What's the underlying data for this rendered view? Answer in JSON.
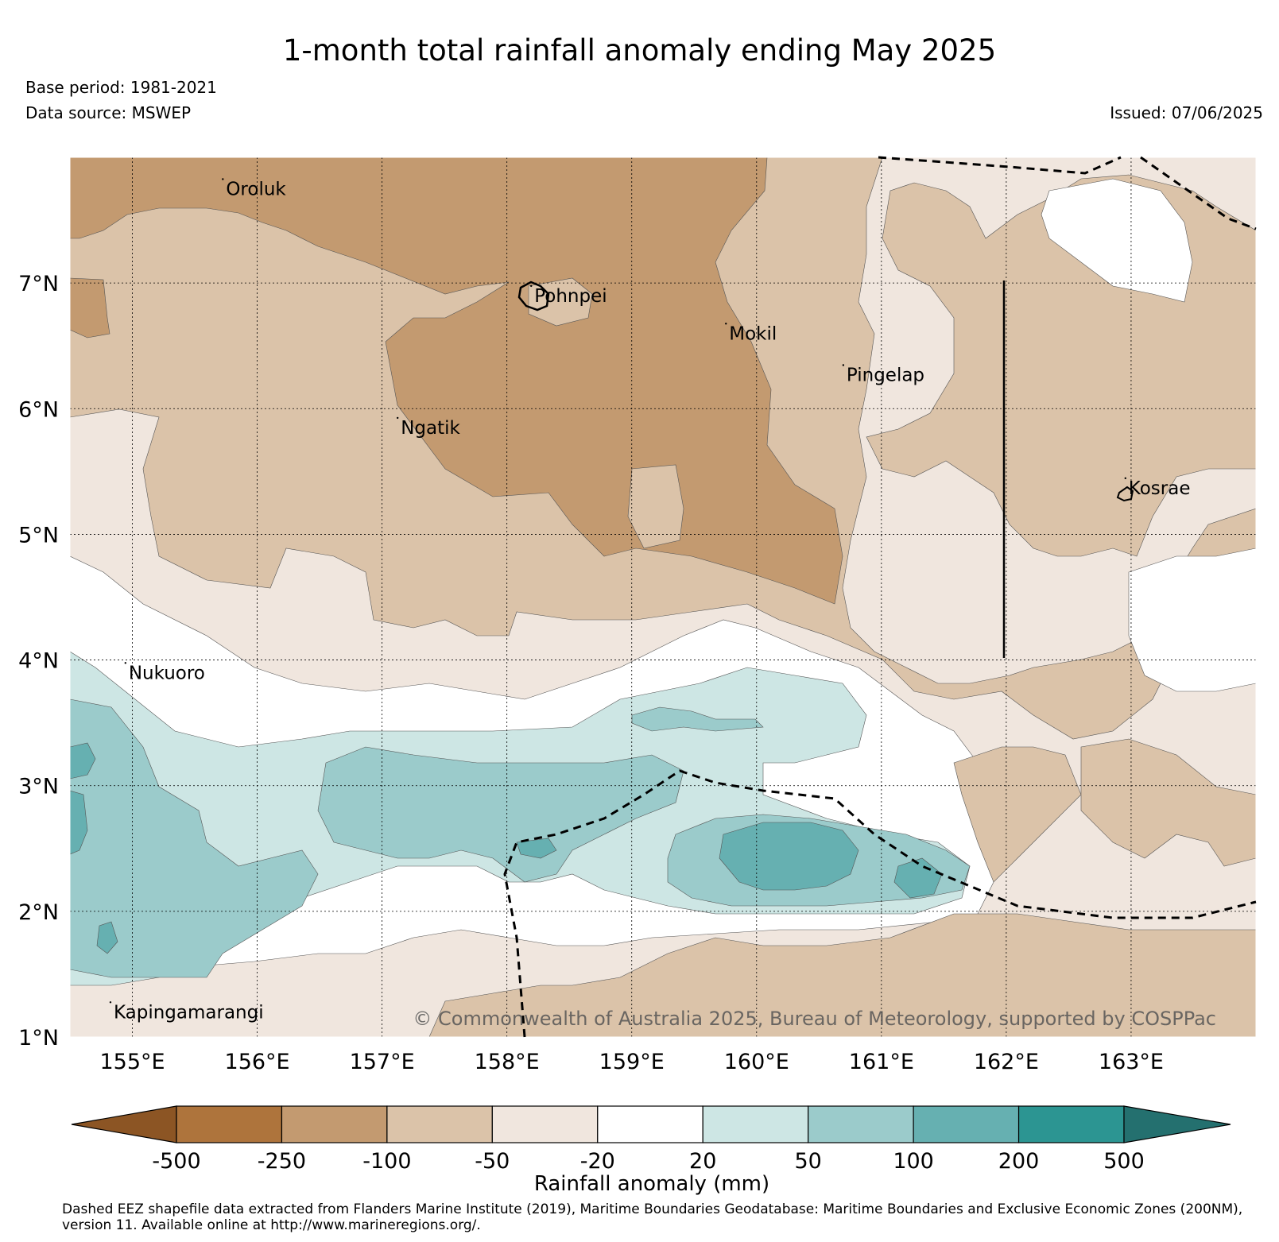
{
  "header": {
    "title": "1-month total rainfall anomaly ending May 2025",
    "base_period": "Base period: 1981-2021",
    "data_source": "Data source: MSWEP",
    "issued": "Issued: 07/06/2025"
  },
  "map": {
    "lon_range": [
      154.5,
      164.0
    ],
    "lat_range": [
      1.0,
      8.0
    ],
    "lon_ticks": [
      {
        "value": 155,
        "label": "155°E"
      },
      {
        "value": 156,
        "label": "156°E"
      },
      {
        "value": 157,
        "label": "157°E"
      },
      {
        "value": 158,
        "label": "158°E"
      },
      {
        "value": 159,
        "label": "159°E"
      },
      {
        "value": 160,
        "label": "160°E"
      },
      {
        "value": 161,
        "label": "161°E"
      },
      {
        "value": 162,
        "label": "162°E"
      },
      {
        "value": 163,
        "label": "163°E"
      }
    ],
    "lat_ticks": [
      {
        "value": 1,
        "label": "1°N"
      },
      {
        "value": 2,
        "label": "2°N"
      },
      {
        "value": 3,
        "label": "3°N"
      },
      {
        "value": 4,
        "label": "4°N"
      },
      {
        "value": 5,
        "label": "5°N"
      },
      {
        "value": 6,
        "label": "6°N"
      },
      {
        "value": 7,
        "label": "7°N"
      }
    ],
    "gridlines": true,
    "places": [
      {
        "name": "Oroluk",
        "lon": 155.75,
        "lat": 7.7
      },
      {
        "name": "Pohnpei",
        "lon": 158.22,
        "lat": 6.85
      },
      {
        "name": "Mokil",
        "lon": 159.78,
        "lat": 6.55
      },
      {
        "name": "Pingelap",
        "lon": 160.72,
        "lat": 6.22
      },
      {
        "name": "Ngatik",
        "lon": 157.15,
        "lat": 5.8
      },
      {
        "name": "Kosrae",
        "lon": 162.98,
        "lat": 5.32
      },
      {
        "name": "Nukuoro",
        "lon": 154.97,
        "lat": 3.85
      },
      {
        "name": "Kapingamarangi",
        "lon": 154.85,
        "lat": 1.15
      }
    ],
    "copyright": "© Commonwealth of Australia 2025, Bureau of Meteorology, supported by COSPPac"
  },
  "colorbar": {
    "label": "Rainfall anomaly (mm)",
    "tick_labels": [
      "-500",
      "-250",
      "-100",
      "-50",
      "-20",
      "20",
      "50",
      "100",
      "200",
      "500"
    ],
    "colors": [
      "#8c5524",
      "#ae743c",
      "#c39a70",
      "#dbc3a9",
      "#f0e6de",
      "#ffffff",
      "#cde6e4",
      "#9bcbcb",
      "#66b0b1",
      "#2c9592",
      "#24706f"
    ]
  },
  "footnote": "Dashed EEZ shapefile data extracted from Flanders Marine Institute (2019), Maritime Boundaries Geodatabase: Maritime Boundaries and Exclusive Economic Zones (200NM), version 11. Available online at http://www.marineregions.org/."
}
